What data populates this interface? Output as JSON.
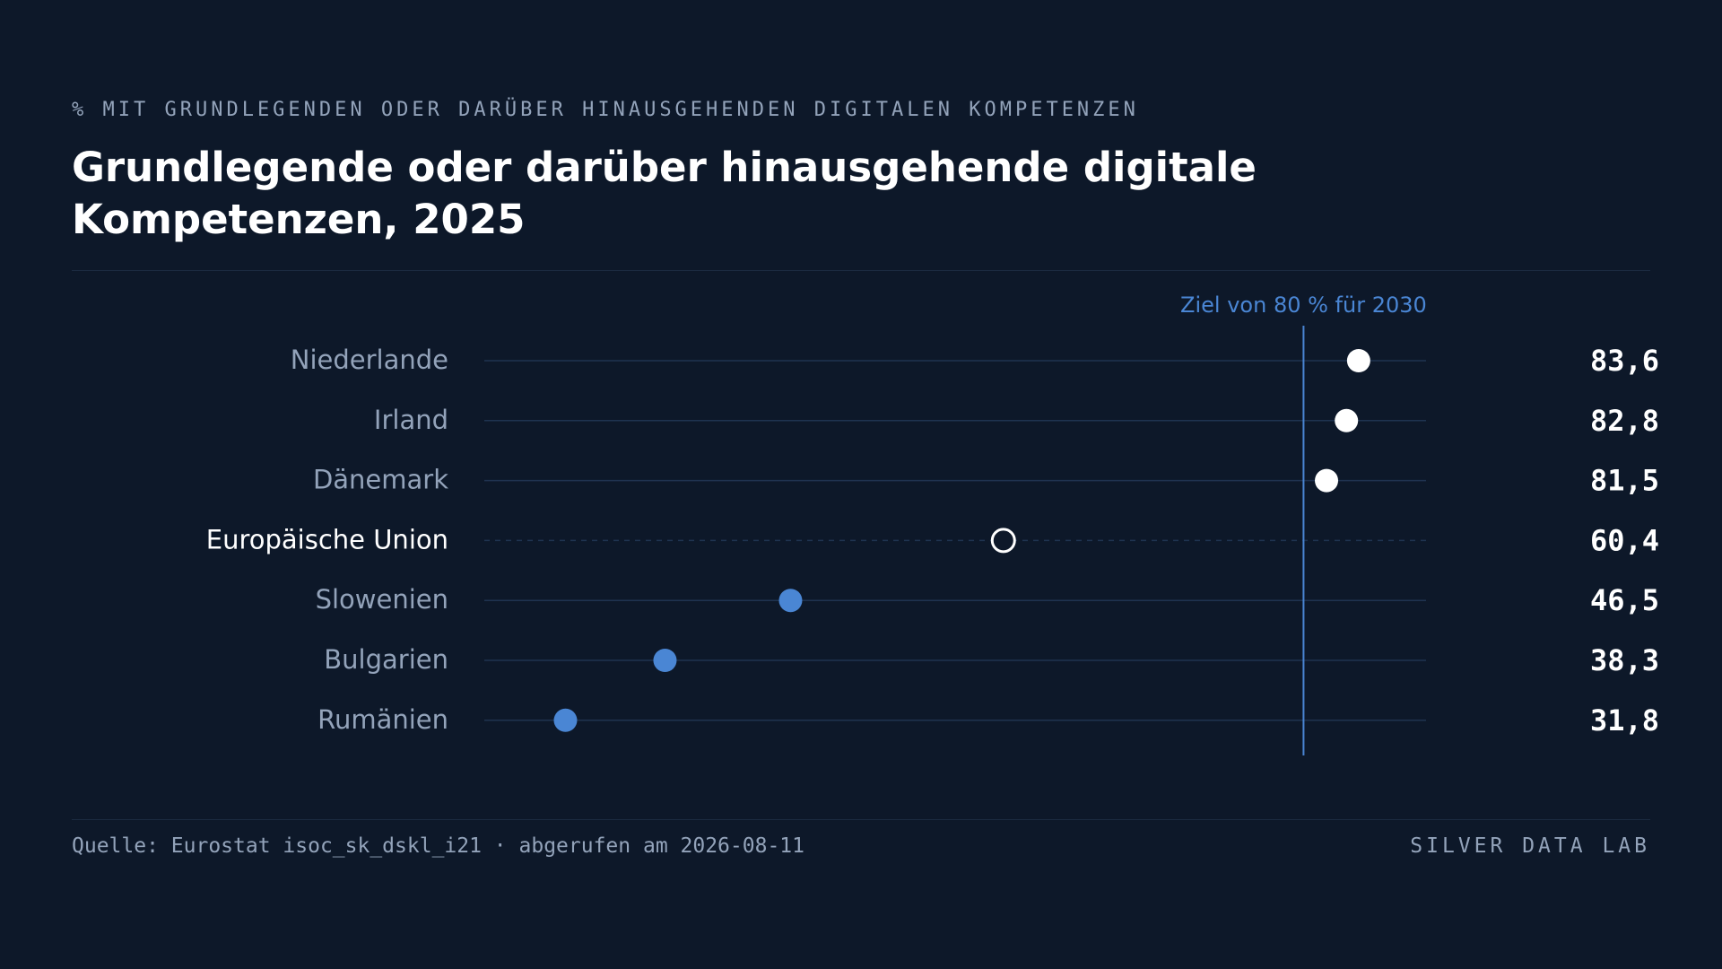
{
  "header": {
    "kicker": "% MIT GRUNDLEGENDEN ODER DARÜBER HINAUSGEHENDEN DIGITALEN KOMPETENZEN",
    "title": "Grundlegende oder darüber hinausgehende digitale Kompetenzen, 2025"
  },
  "footer": {
    "source": "Quelle: Eurostat isoc_sk_dskl_i21 · abgerufen am 2026-08-11",
    "brand": "SILVER DATA LAB"
  },
  "chart_data": {
    "type": "scatter",
    "subtype": "dot-plot",
    "categories": [
      "Niederlande",
      "Irland",
      "Dänemark",
      "Europäische Union",
      "Slowenien",
      "Bulgarien",
      "Rumänien"
    ],
    "values": [
      83.6,
      82.8,
      81.5,
      60.4,
      46.5,
      38.3,
      31.8
    ],
    "value_labels": [
      "83,6",
      "82,8",
      "81,5",
      "60,4",
      "46,5",
      "38,3",
      "31,8"
    ],
    "highlight": [
      "top",
      "top",
      "top",
      "reference",
      "bottom",
      "bottom",
      "bottom"
    ],
    "xlim": [
      26.5,
      88
    ],
    "reference_line": {
      "value": 80,
      "label": "Ziel von 80 % für 2030"
    },
    "grid": false,
    "colors": {
      "top": "#ffffff",
      "bottom": "#4a86d4",
      "reference_stroke": "#ffffff",
      "target_line": "#4a86d4",
      "track": "#1f3350",
      "label": "#93a3ba",
      "label_highlight": "#ffffff",
      "value": "#ffffff"
    }
  }
}
